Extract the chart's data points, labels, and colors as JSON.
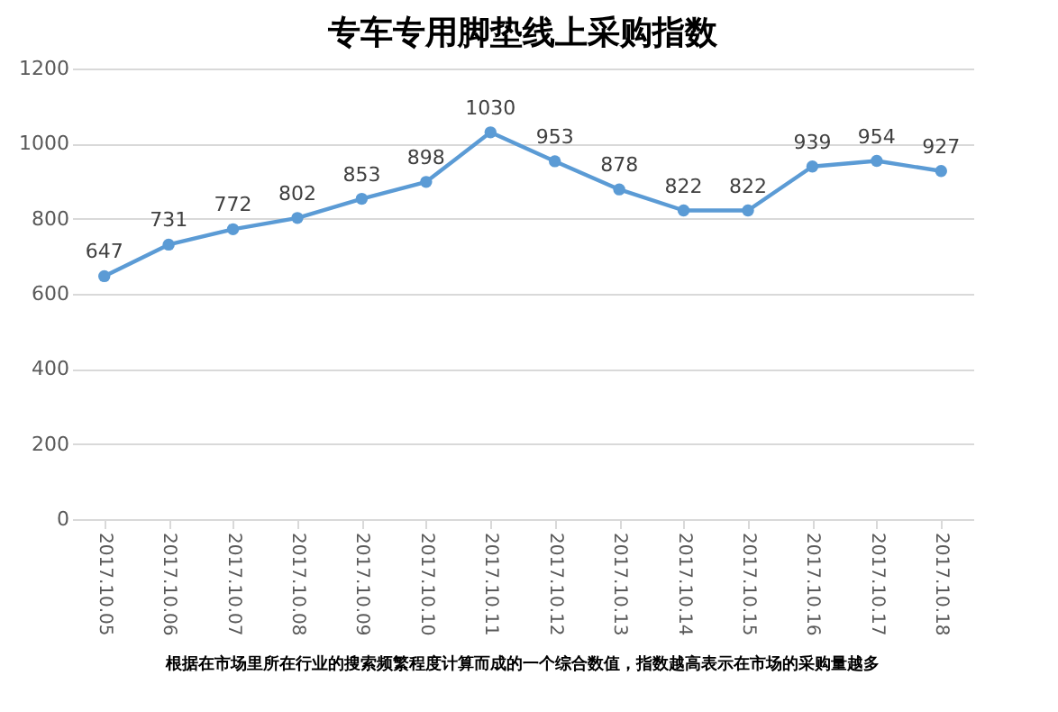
{
  "chart_data": {
    "type": "line",
    "title": "专车专用脚垫线上采购指数",
    "categories": [
      "2017.10.05",
      "2017.10.06",
      "2017.10.07",
      "2017.10.08",
      "2017.10.09",
      "2017.10.10",
      "2017.10.11",
      "2017.10.12",
      "2017.10.13",
      "2017.10.14",
      "2017.10.15",
      "2017.10.16",
      "2017.10.17",
      "2017.10.18"
    ],
    "series": [
      {
        "color": "#5b9bd5",
        "values": [
          647,
          731,
          772,
          802,
          853,
          898,
          1030,
          953,
          878,
          822,
          822,
          939,
          954,
          927
        ]
      }
    ],
    "ylim": [
      0,
      1200
    ],
    "yticks": [
      0,
      200,
      400,
      600,
      800,
      {
        "value": 1000,
        "label": "1000"
      },
      {
        "value": 1200,
        "label": "1200"
      }
    ],
    "grid": "y",
    "marker": "circle",
    "line_style": "solid",
    "data_labels": true,
    "annotations": [
      "根据在市场里所在行业的搜索频繁程度计算而成的一个综合数值，指数越高表示在市场的采购量越多"
    ]
  }
}
